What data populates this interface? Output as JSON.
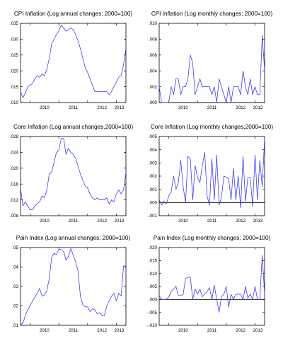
{
  "figure": {
    "line_color": "#3333ff"
  },
  "chart_data": [
    {
      "type": "line",
      "title": "CPI Inflation (Log annual changes; 2000=100)",
      "x_ticks": [
        "2010",
        "2011",
        "2012",
        "2013"
      ],
      "y_ticks": [
        ".010",
        ".015",
        ".020",
        ".025",
        ".030",
        ".035"
      ],
      "ylim": [
        0.01,
        0.035
      ],
      "x_range": [
        2009.667,
        2013.333
      ],
      "zero_line": false,
      "series": [
        {
          "x": [
            2009.667,
            2009.75,
            2009.833,
            2009.917,
            2010.0,
            2010.083,
            2010.167,
            2010.25,
            2010.333,
            2010.417,
            2010.5,
            2010.583,
            2010.667,
            2010.75,
            2010.833,
            2010.917,
            2011.0,
            2011.083,
            2011.167,
            2011.25,
            2011.333,
            2011.417,
            2011.5,
            2011.583,
            2011.667,
            2011.75,
            2011.833,
            2011.917,
            2012.0,
            2012.083,
            2012.167,
            2012.25,
            2012.333,
            2012.417,
            2012.5,
            2012.583,
            2012.667,
            2012.75,
            2012.833,
            2012.917,
            2013.0,
            2013.083,
            2013.167,
            2013.25,
            2013.333
          ],
          "y": [
            0.0135,
            0.0115,
            0.013,
            0.015,
            0.0155,
            0.016,
            0.0175,
            0.0185,
            0.018,
            0.019,
            0.0185,
            0.0205,
            0.024,
            0.0285,
            0.03,
            0.0315,
            0.0325,
            0.0345,
            0.0335,
            0.0325,
            0.033,
            0.0335,
            0.033,
            0.0315,
            0.0295,
            0.027,
            0.024,
            0.021,
            0.0195,
            0.0175,
            0.0155,
            0.0135,
            0.0135,
            0.0135,
            0.0135,
            0.0135,
            0.0135,
            0.0125,
            0.0135,
            0.015,
            0.0165,
            0.018,
            0.0185,
            0.022,
            0.027
          ]
        }
      ]
    },
    {
      "type": "line",
      "title": "CPI Inflation (Log monthly changes; 2000=100)",
      "x_ticks": [
        "2010",
        "2011",
        "2012",
        "2013"
      ],
      "y_ticks": [
        ".000",
        ".002",
        ".004",
        ".006",
        ".008",
        ".010"
      ],
      "ylim": [
        0.0,
        0.01
      ],
      "x_range": [
        2009.667,
        2013.333
      ],
      "zero_line": true,
      "series": [
        {
          "x": [
            2009.667,
            2009.75,
            2009.833,
            2009.917,
            2010.0,
            2010.083,
            2010.167,
            2010.25,
            2010.333,
            2010.417,
            2010.5,
            2010.583,
            2010.667,
            2010.75,
            2010.833,
            2010.917,
            2011.0,
            2011.083,
            2011.167,
            2011.25,
            2011.333,
            2011.417,
            2011.5,
            2011.583,
            2011.667,
            2011.75,
            2011.833,
            2011.917,
            2012.0,
            2012.083,
            2012.167,
            2012.25,
            2012.333,
            2012.417,
            2012.5,
            2012.583,
            2012.667,
            2012.75,
            2012.833,
            2012.917,
            2013.0,
            2013.083,
            2013.167,
            2013.25,
            2013.333
          ],
          "y": [
            0.002,
            0.0,
            0.0,
            0.0,
            0.0,
            0.002,
            0.001,
            0.003,
            0.003,
            0.001,
            0.002,
            0.002,
            0.003,
            0.006,
            0.005,
            0.001,
            0.002,
            0.003,
            0.002,
            0.002,
            0.002,
            0.002,
            0.001,
            0.002,
            0.0,
            0.003,
            0.002,
            0.001,
            0.0,
            0.002,
            0.0,
            0.002,
            0.002,
            0.002,
            0.001,
            0.004,
            0.002,
            0.001,
            0.003,
            0.001,
            0.002,
            0.001,
            0.001,
            0.0085,
            0.004
          ]
        }
      ]
    },
    {
      "type": "line",
      "title": "Core Inflation (Log annual changes,2000=100)",
      "x_ticks": [
        "2010",
        "2011",
        "2012",
        "2013"
      ],
      "y_ticks": [
        ".008",
        ".012",
        ".016",
        ".020",
        ".024",
        ".028"
      ],
      "ylim": [
        0.008,
        0.028
      ],
      "x_range": [
        2009.667,
        2013.333
      ],
      "zero_line": false,
      "series": [
        {
          "x": [
            2009.667,
            2009.75,
            2009.833,
            2009.917,
            2010.0,
            2010.083,
            2010.167,
            2010.25,
            2010.333,
            2010.417,
            2010.5,
            2010.583,
            2010.667,
            2010.75,
            2010.833,
            2010.917,
            2011.0,
            2011.083,
            2011.167,
            2011.25,
            2011.333,
            2011.417,
            2011.5,
            2011.583,
            2011.667,
            2011.75,
            2011.833,
            2011.917,
            2012.0,
            2012.083,
            2012.167,
            2012.25,
            2012.333,
            2012.417,
            2012.5,
            2012.583,
            2012.667,
            2012.75,
            2012.833,
            2012.917,
            2013.0,
            2013.083,
            2013.167,
            2013.25,
            2013.333
          ],
          "y": [
            0.015,
            0.0105,
            0.0115,
            0.0105,
            0.0095,
            0.0095,
            0.0105,
            0.011,
            0.0115,
            0.013,
            0.0125,
            0.0145,
            0.0185,
            0.019,
            0.0215,
            0.024,
            0.0245,
            0.0275,
            0.0275,
            0.0235,
            0.025,
            0.024,
            0.0235,
            0.0225,
            0.0205,
            0.0185,
            0.017,
            0.0155,
            0.015,
            0.0135,
            0.0125,
            0.012,
            0.0125,
            0.012,
            0.012,
            0.012,
            0.0125,
            0.011,
            0.012,
            0.0115,
            0.0135,
            0.0145,
            0.0135,
            0.0145,
            0.019
          ]
        }
      ]
    },
    {
      "type": "line",
      "title": "Core Inflation (Log monthly changes,2000=100)",
      "x_ticks": [
        "2010",
        "2011",
        "2012",
        "2013"
      ],
      "y_ticks": [
        "-.001",
        ".000",
        ".001",
        ".002",
        ".003",
        ".004",
        ".005"
      ],
      "ylim": [
        -0.001,
        0.005
      ],
      "x_range": [
        2009.667,
        2013.333
      ],
      "zero_line": true,
      "series": [
        {
          "x": [
            2009.667,
            2009.75,
            2009.833,
            2009.917,
            2010.0,
            2010.083,
            2010.167,
            2010.25,
            2010.333,
            2010.417,
            2010.5,
            2010.583,
            2010.667,
            2010.75,
            2010.833,
            2010.917,
            2011.0,
            2011.083,
            2011.167,
            2011.25,
            2011.333,
            2011.417,
            2011.5,
            2011.583,
            2011.667,
            2011.75,
            2011.833,
            2011.917,
            2012.0,
            2012.083,
            2012.167,
            2012.25,
            2012.333,
            2012.417,
            2012.5,
            2012.583,
            2012.667,
            2012.75,
            2012.833,
            2012.917,
            2013.0,
            2013.083,
            2013.167,
            2013.25,
            2013.333
          ],
          "y": [
            0.0002,
            -0.0002,
            0.0001,
            -0.0001,
            0.0005,
            0.0008,
            0.002,
            0.001,
            0.0015,
            0.0032,
            0.0012,
            0.0,
            0.0035,
            0.0033,
            0.0002,
            0.0028,
            0.0019,
            0.0015,
            0.0028,
            0.0038,
            0.0005,
            -0.0002,
            0.0033,
            0.0002,
            0.0036,
            -0.0002,
            0.0004,
            0.002,
            0.0019,
            0.0018,
            0.0002,
            0.0026,
            0.0002,
            0.002,
            -0.0004,
            0.0035,
            0.0001,
            0.0019,
            0.0019,
            -0.0003,
            0.0036,
            0.0002,
            0.0032,
            0.0012,
            0.0049
          ]
        }
      ]
    },
    {
      "type": "line",
      "title": "Pain Index (Log annual changes; 2000=100)",
      "x_ticks": [
        "2010",
        "2011",
        "2012",
        "2013"
      ],
      "y_ticks": [
        ".01",
        ".02",
        ".03",
        ".04",
        ".05"
      ],
      "ylim": [
        0.01,
        0.05
      ],
      "x_range": [
        2009.667,
        2013.333
      ],
      "zero_line": false,
      "series": [
        {
          "x": [
            2009.667,
            2009.75,
            2009.833,
            2009.917,
            2010.0,
            2010.083,
            2010.167,
            2010.25,
            2010.333,
            2010.417,
            2010.5,
            2010.583,
            2010.667,
            2010.75,
            2010.833,
            2010.917,
            2011.0,
            2011.083,
            2011.167,
            2011.25,
            2011.333,
            2011.417,
            2011.5,
            2011.583,
            2011.667,
            2011.75,
            2011.833,
            2011.917,
            2012.0,
            2012.083,
            2012.167,
            2012.25,
            2012.333,
            2012.417,
            2012.5,
            2012.583,
            2012.667,
            2012.75,
            2012.833,
            2012.917,
            2013.0,
            2013.083,
            2013.167,
            2013.25,
            2013.333
          ],
          "y": [
            0.0105,
            0.011,
            0.015,
            0.018,
            0.02,
            0.0225,
            0.0245,
            0.0265,
            0.029,
            0.025,
            0.0255,
            0.028,
            0.034,
            0.045,
            0.047,
            0.0465,
            0.049,
            0.049,
            0.048,
            0.0435,
            0.0455,
            0.0495,
            0.046,
            0.0425,
            0.038,
            0.025,
            0.0205,
            0.0195,
            0.0195,
            0.017,
            0.0185,
            0.018,
            0.016,
            0.0165,
            0.015,
            0.015,
            0.02,
            0.0225,
            0.025,
            0.0265,
            0.0225,
            0.0265,
            0.025,
            0.0405,
            0.0405
          ]
        }
      ]
    },
    {
      "type": "line",
      "title": "Pain Index (Log monthly changes; 2000=100)",
      "x_ticks": [
        "2010",
        "2011",
        "2012",
        "2013"
      ],
      "y_ticks": [
        "-.010",
        "-.005",
        ".000",
        ".005",
        ".010",
        ".015",
        ".020"
      ],
      "ylim": [
        -0.01,
        0.02
      ],
      "x_range": [
        2009.667,
        2013.333
      ],
      "zero_line": true,
      "series": [
        {
          "x": [
            2009.667,
            2009.75,
            2009.833,
            2009.917,
            2010.0,
            2010.083,
            2010.167,
            2010.25,
            2010.333,
            2010.417,
            2010.5,
            2010.583,
            2010.667,
            2010.75,
            2010.833,
            2010.917,
            2011.0,
            2011.083,
            2011.167,
            2011.25,
            2011.333,
            2011.417,
            2011.5,
            2011.583,
            2011.667,
            2011.75,
            2011.833,
            2011.917,
            2012.0,
            2012.083,
            2012.167,
            2012.25,
            2012.333,
            2012.417,
            2012.5,
            2012.583,
            2012.667,
            2012.75,
            2012.833,
            2012.917,
            2013.0,
            2013.083,
            2013.167,
            2013.25,
            2013.333
          ],
          "y": [
            0.0015,
            0.0,
            0.0,
            0.0,
            0.001,
            0.003,
            0.004,
            0.005,
            0.0015,
            0.0015,
            0.002,
            0.008,
            0.0085,
            0.0085,
            0.0,
            0.004,
            0.002,
            0.004,
            0.001,
            0.002,
            0.003,
            0.0045,
            0.0,
            0.0055,
            0.0,
            -0.005,
            0.001,
            0.002,
            0.005,
            -0.003,
            0.002,
            0.0,
            0.002,
            0.002,
            0.002,
            0.0,
            0.005,
            0.0005,
            0.002,
            0.0,
            0.005,
            0.0,
            0.0,
            0.017,
            0.002
          ]
        }
      ]
    }
  ]
}
